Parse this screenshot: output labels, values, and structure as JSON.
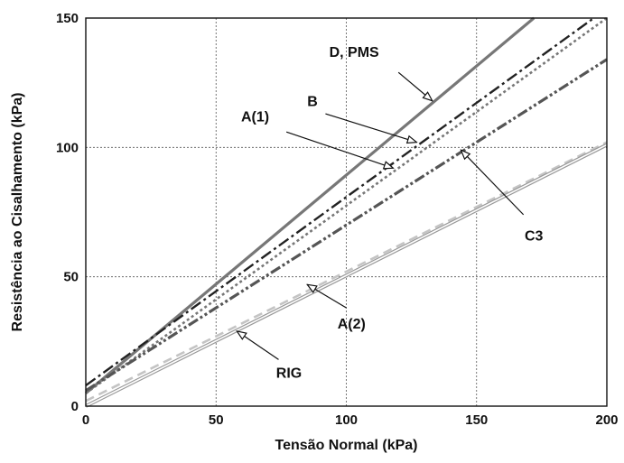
{
  "chart_data": {
    "type": "line",
    "xlabel": "Tensão Normal (kPa)",
    "ylabel": "Resistência ao Cisalhamento (kPa)",
    "xlim": [
      0,
      200
    ],
    "ylim": [
      0,
      150
    ],
    "xticks": [
      0,
      50,
      100,
      150,
      200
    ],
    "yticks": [
      0,
      50,
      100,
      150
    ],
    "grid": true,
    "series": [
      {
        "name": "D, PMS",
        "x": [
          0,
          172
        ],
        "y": [
          5,
          150
        ],
        "color": "#777777",
        "style": "solid",
        "width": 3.2
      },
      {
        "name": "B",
        "x": [
          0,
          195
        ],
        "y": [
          8,
          150
        ],
        "color": "#222222",
        "style": "dashdot",
        "width": 2.4
      },
      {
        "name": "A(1)",
        "x": [
          0,
          200
        ],
        "y": [
          5,
          150
        ],
        "color": "#777777",
        "style": "dot",
        "width": 2.6
      },
      {
        "name": "C3",
        "x": [
          0,
          200
        ],
        "y": [
          6,
          134
        ],
        "color": "#555555",
        "style": "dashdotdot",
        "width": 3.2
      },
      {
        "name": "A(2)",
        "x": [
          0,
          200
        ],
        "y": [
          2,
          102
        ],
        "color": "#c4c4c4",
        "style": "dash",
        "width": 2.6
      },
      {
        "name": "RIG",
        "x": [
          0,
          200
        ],
        "y": [
          0,
          101
        ],
        "color": "#999999",
        "style": "thin-double",
        "width": 1
      }
    ],
    "annotations": [
      {
        "text": "D, PMS",
        "text_at": [
          103,
          135
        ],
        "arrow_from": [
          120,
          129
        ],
        "arrow_to": [
          133,
          118
        ]
      },
      {
        "text": "B",
        "text_at": [
          87,
          116
        ],
        "arrow_from": [
          92,
          113
        ],
        "arrow_to": [
          127,
          102
        ]
      },
      {
        "text": "A(1)",
        "text_at": [
          65,
          110
        ],
        "arrow_from": [
          77,
          106
        ],
        "arrow_to": [
          118,
          92
        ]
      },
      {
        "text": "C3",
        "text_at": [
          172,
          64
        ],
        "arrow_from": [
          168,
          74
        ],
        "arrow_to": [
          144,
          99
        ]
      },
      {
        "text": "A(2)",
        "text_at": [
          102,
          30
        ],
        "arrow_from": [
          100,
          38
        ],
        "arrow_to": [
          85,
          47
        ]
      },
      {
        "text": "RIG",
        "text_at": [
          78,
          11
        ],
        "arrow_from": [
          74,
          18
        ],
        "arrow_to": [
          58,
          29
        ]
      }
    ]
  }
}
